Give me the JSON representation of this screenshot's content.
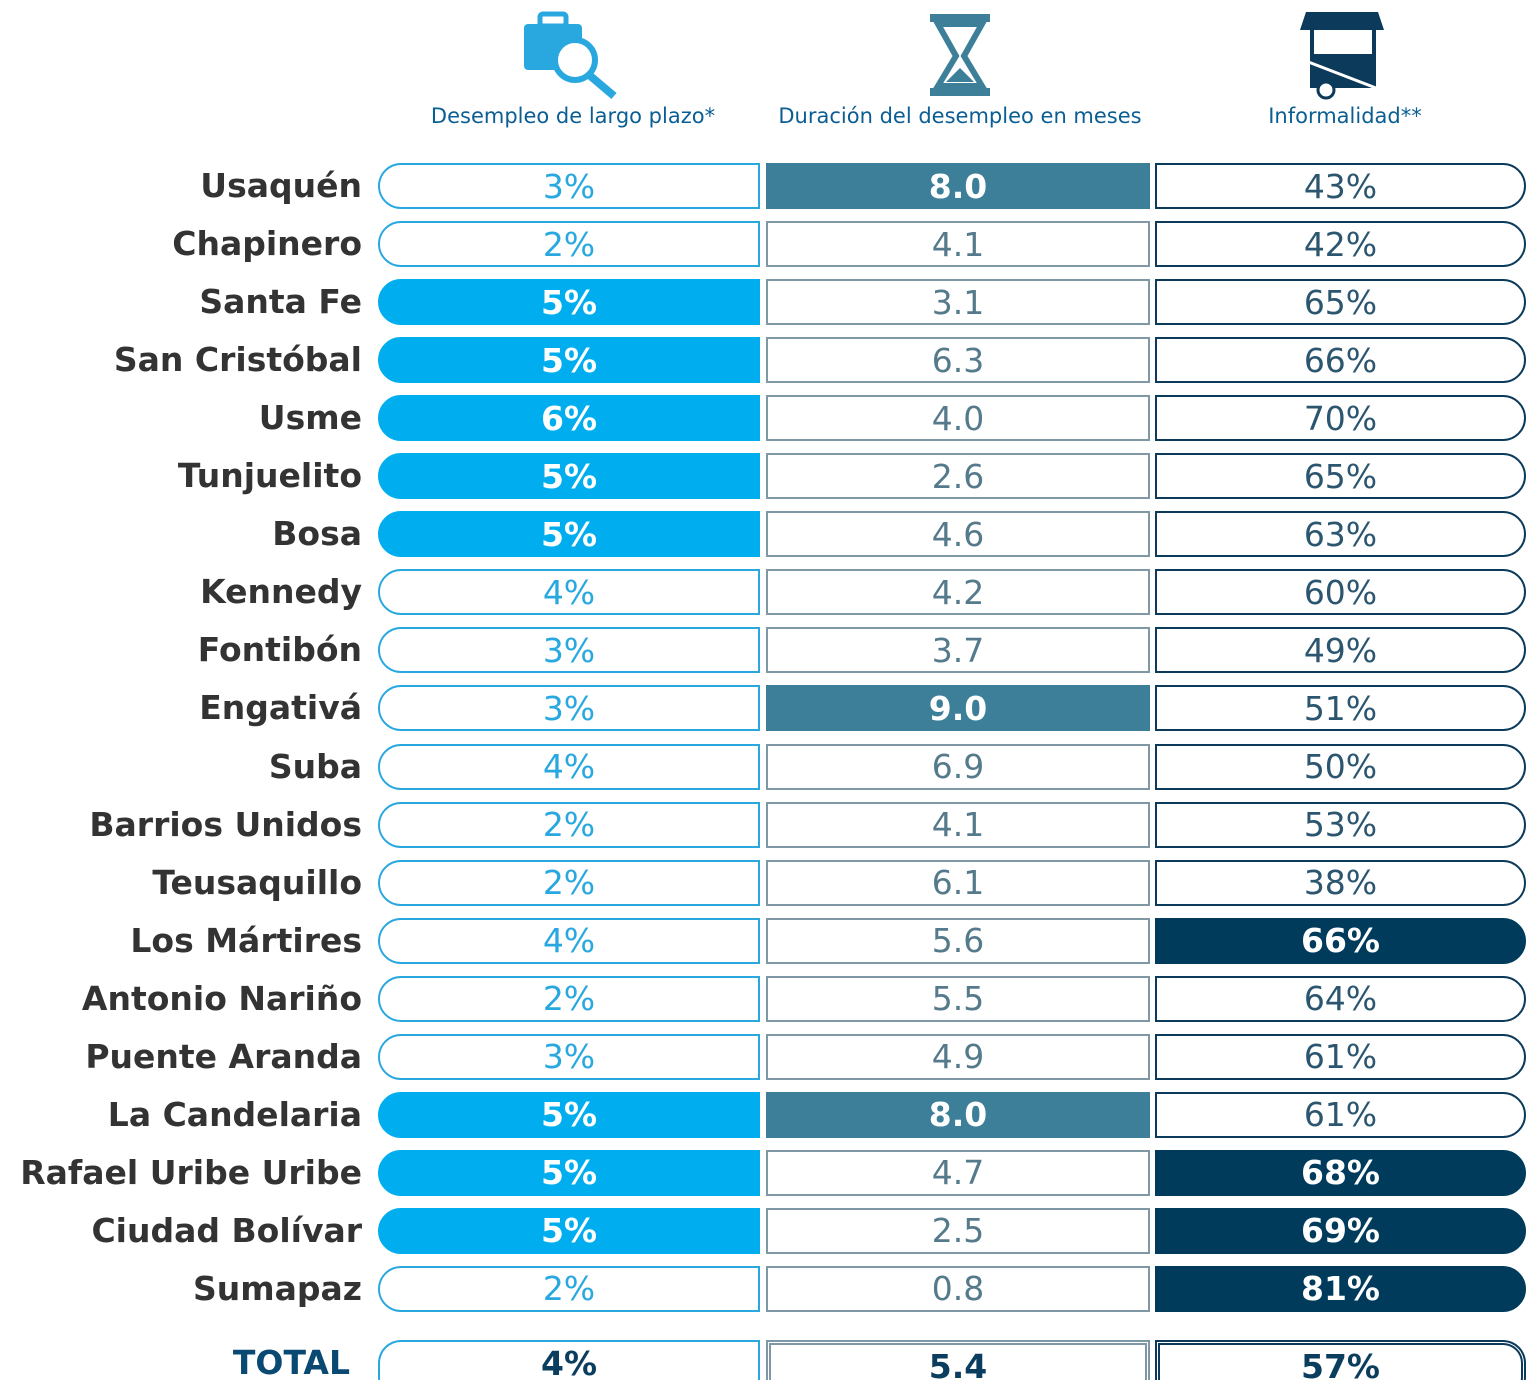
{
  "headers": [
    {
      "label": "Desempleo de largo plazo*"
    },
    {
      "label": "Duración del desempleo en meses"
    },
    {
      "label": "Informalidad**"
    }
  ],
  "rows": [
    {
      "name": "Usaquén",
      "values": [
        "3%",
        "8.0",
        "43%"
      ],
      "highlight": [
        false,
        true,
        false
      ]
    },
    {
      "name": "Chapinero",
      "values": [
        "2%",
        "4.1",
        "42%"
      ],
      "highlight": [
        false,
        false,
        false
      ]
    },
    {
      "name": "Santa Fe",
      "values": [
        "5%",
        "3.1",
        "65%"
      ],
      "highlight": [
        true,
        false,
        false
      ]
    },
    {
      "name": "San Cristóbal",
      "values": [
        "5%",
        "6.3",
        "66%"
      ],
      "highlight": [
        true,
        false,
        false
      ]
    },
    {
      "name": "Usme",
      "values": [
        "6%",
        "4.0",
        "70%"
      ],
      "highlight": [
        true,
        false,
        false
      ]
    },
    {
      "name": "Tunjuelito",
      "values": [
        "5%",
        "2.6",
        "65%"
      ],
      "highlight": [
        true,
        false,
        false
      ]
    },
    {
      "name": "Bosa",
      "values": [
        "5%",
        "4.6",
        "63%"
      ],
      "highlight": [
        true,
        false,
        false
      ]
    },
    {
      "name": "Kennedy",
      "values": [
        "4%",
        "4.2",
        "60%"
      ],
      "highlight": [
        false,
        false,
        false
      ]
    },
    {
      "name": "Fontibón",
      "values": [
        "3%",
        "3.7",
        "49%"
      ],
      "highlight": [
        false,
        false,
        false
      ]
    },
    {
      "name": "Engativá",
      "values": [
        "3%",
        "9.0",
        "51%"
      ],
      "highlight": [
        false,
        true,
        false
      ]
    },
    {
      "name": "Suba",
      "values": [
        "4%",
        "6.9",
        "50%"
      ],
      "highlight": [
        false,
        false,
        false
      ]
    },
    {
      "name": "Barrios Unidos",
      "values": [
        "2%",
        "4.1",
        "53%"
      ],
      "highlight": [
        false,
        false,
        false
      ]
    },
    {
      "name": "Teusaquillo",
      "values": [
        "2%",
        "6.1",
        "38%"
      ],
      "highlight": [
        false,
        false,
        false
      ]
    },
    {
      "name": "Los Mártires",
      "values": [
        "4%",
        "5.6",
        "66%"
      ],
      "highlight": [
        false,
        false,
        true
      ]
    },
    {
      "name": "Antonio Nariño",
      "values": [
        "2%",
        "5.5",
        "64%"
      ],
      "highlight": [
        false,
        false,
        false
      ]
    },
    {
      "name": "Puente Aranda",
      "values": [
        "3%",
        "4.9",
        "61%"
      ],
      "highlight": [
        false,
        false,
        false
      ]
    },
    {
      "name": "La Candelaria",
      "values": [
        "5%",
        "8.0",
        "61%"
      ],
      "highlight": [
        true,
        true,
        false
      ]
    },
    {
      "name": "Rafael Uribe Uribe",
      "values": [
        "5%",
        "4.7",
        "68%"
      ],
      "highlight": [
        true,
        false,
        true
      ]
    },
    {
      "name": "Ciudad Bolívar",
      "values": [
        "5%",
        "2.5",
        "69%"
      ],
      "highlight": [
        true,
        false,
        true
      ]
    },
    {
      "name": "Sumapaz",
      "values": [
        "2%",
        "0.8",
        "81%"
      ],
      "highlight": [
        false,
        false,
        true
      ]
    }
  ],
  "total": {
    "label": "TOTAL",
    "values": [
      "4%",
      "5.4",
      "57%"
    ]
  }
}
